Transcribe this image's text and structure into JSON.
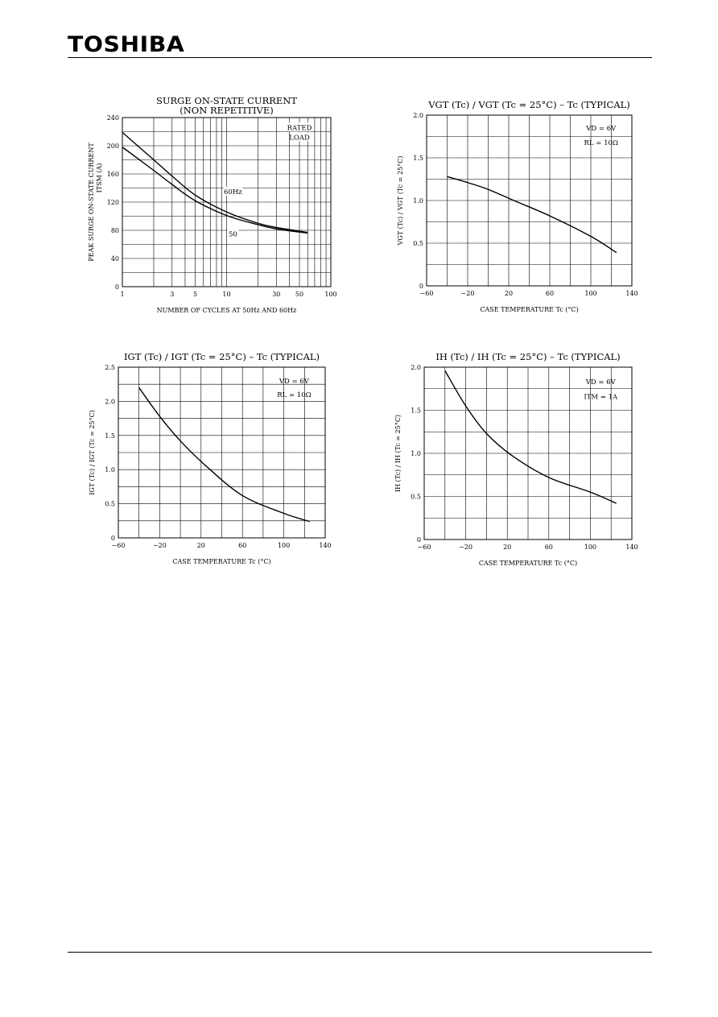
{
  "header": {
    "logo_text": "TOSHIBA"
  },
  "chart_data": [
    {
      "type": "line",
      "title": "SURGE ON-STATE CURRENT",
      "subtitle": "(NON REPETITIVE)",
      "xlabel": "NUMBER OF CYCLES AT 50Hz AND 60Hz",
      "ylabel_main": "PEAK SURGE ON-STATE CURRENT",
      "ylabel_sub": "ITSM  (A)",
      "xscale": "log",
      "xlim": [
        1,
        100
      ],
      "ylim": [
        0,
        240
      ],
      "xtick_values": [
        1,
        3,
        5,
        10,
        30,
        50,
        100
      ],
      "xtick_labels": [
        "1",
        "3",
        "5",
        "10",
        "30",
        "50",
        "100"
      ],
      "ytick_values": [
        0,
        40,
        80,
        120,
        160,
        200,
        240
      ],
      "ytick_labels": [
        "0",
        "40",
        "80",
        "120",
        "160",
        "200",
        "240"
      ],
      "annotations": [
        {
          "text": "RATED",
          "x": 50,
          "y": 226
        },
        {
          "text": "LOAD",
          "x": 50,
          "y": 212
        },
        {
          "text": "60Hz",
          "x": 11.5,
          "y": 135
        },
        {
          "text": "50",
          "x": 11.5,
          "y": 75
        }
      ],
      "series": [
        {
          "name": "60Hz",
          "x": [
            1,
            2,
            3,
            5,
            10,
            20,
            30,
            60
          ],
          "y": [
            219,
            180,
            157,
            130,
            106,
            90,
            84,
            77
          ]
        },
        {
          "name": "50",
          "x": [
            1,
            2,
            3,
            5,
            10,
            20,
            30,
            60
          ],
          "y": [
            198,
            165,
            145,
            122,
            101,
            88,
            82,
            76
          ]
        }
      ]
    },
    {
      "type": "line",
      "title": "VGT (Tc) / VGT (Tc = 25°C)  –  Tc    (TYPICAL)",
      "xlabel": "CASE TEMPERATURE   Tc   (°C)",
      "ylabel": "VGT (Tc) / VGT (Tc = 25°C)",
      "xlim": [
        -60,
        140
      ],
      "ylim": [
        0,
        2.0
      ],
      "xtick_values": [
        -60,
        -20,
        20,
        60,
        100,
        140
      ],
      "xtick_labels": [
        "−60",
        "−20",
        "20",
        "60",
        "100",
        "140"
      ],
      "ytick_values": [
        0,
        0.5,
        1.0,
        1.5,
        2.0
      ],
      "ytick_labels": [
        "0",
        "0.5",
        "1.0",
        "1.5",
        "2.0"
      ],
      "annotations": [
        {
          "text": "VD = 6V",
          "x": 110,
          "y": 1.85
        },
        {
          "text": "RL = 10Ω",
          "x": 110,
          "y": 1.68
        }
      ],
      "series": [
        {
          "x": [
            -40,
            -20,
            0,
            25,
            60,
            100,
            125
          ],
          "y": [
            1.28,
            1.21,
            1.13,
            1.0,
            0.82,
            0.58,
            0.39
          ]
        }
      ]
    },
    {
      "type": "line",
      "title": "IGT (Tc) / IGT (Tc = 25°C)  –  Tc    (TYPICAL)",
      "xlabel": "CASE TEMPERATURE   Tc   (°C)",
      "ylabel": "IGT (Tc) / IGT (Tc = 25°C)",
      "xlim": [
        -60,
        140
      ],
      "ylim": [
        0,
        2.5
      ],
      "xtick_values": [
        -60,
        -20,
        20,
        60,
        100,
        140
      ],
      "xtick_labels": [
        "−60",
        "−20",
        "20",
        "60",
        "100",
        "140"
      ],
      "ytick_values": [
        0,
        0.5,
        1.0,
        1.5,
        2.0,
        2.5
      ],
      "ytick_labels": [
        "0",
        "0.5",
        "1.0",
        "1.5",
        "2.0",
        "2.5"
      ],
      "annotations": [
        {
          "text": "VD = 6V",
          "x": 110,
          "y": 2.3
        },
        {
          "text": "RL = 10Ω",
          "x": 110,
          "y": 2.1
        }
      ],
      "series": [
        {
          "x": [
            -40,
            -20,
            0,
            25,
            60,
            100,
            125
          ],
          "y": [
            2.2,
            1.78,
            1.42,
            1.05,
            0.62,
            0.36,
            0.24
          ]
        }
      ]
    },
    {
      "type": "line",
      "title": "IH (Tc) / IH (Tc = 25°C)  –  Tc    (TYPICAL)",
      "xlabel": "CASE TEMPERATURE   Tc   (°C)",
      "ylabel": "IH (Tc) / IH (Tc = 25°C)",
      "xlim": [
        -60,
        140
      ],
      "ylim": [
        0,
        2.0
      ],
      "xtick_values": [
        -60,
        -20,
        20,
        60,
        100,
        140
      ],
      "xtick_labels": [
        "−60",
        "−20",
        "20",
        "60",
        "100",
        "140"
      ],
      "ytick_values": [
        0,
        0.5,
        1.0,
        1.5,
        2.0
      ],
      "ytick_labels": [
        "0",
        "0.5",
        "1.0",
        "1.5",
        "2.0"
      ],
      "annotations": [
        {
          "text": "VD = 6V",
          "x": 110,
          "y": 1.83
        },
        {
          "text": "ITM = 1A",
          "x": 110,
          "y": 1.66
        }
      ],
      "series": [
        {
          "x": [
            -40,
            -20,
            0,
            25,
            60,
            100,
            125
          ],
          "y": [
            1.96,
            1.55,
            1.23,
            0.97,
            0.72,
            0.55,
            0.42
          ]
        }
      ]
    }
  ]
}
